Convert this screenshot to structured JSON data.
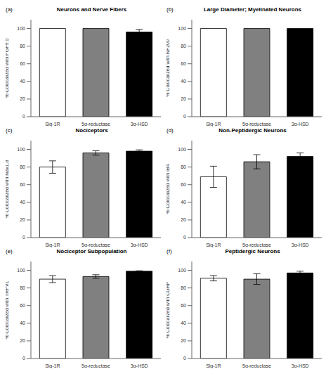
{
  "chart_data": [
    {
      "type": "bar",
      "title": "Neurons and Nerve Fibers",
      "annotations": [
        "(a)"
      ],
      "y_label": "% Colocalized with PGP9.5",
      "categories": [
        "Sig-1R",
        "5α-reductase",
        "3α-HSD"
      ],
      "values": [
        100,
        100,
        96
      ],
      "errors": [
        0,
        0,
        3
      ],
      "colors": [
        "white",
        "#808080",
        "black"
      ],
      "ylim": [
        0,
        110
      ],
      "yticks": [
        0,
        20,
        40,
        60,
        80,
        100
      ],
      "grid": false
    },
    {
      "type": "bar",
      "title": "Large Diameter; Myelinated Neurons",
      "annotations": [
        "(b)"
      ],
      "y_label": "% Colocalized with NF200",
      "categories": [
        "Sig-1R",
        "5α-reductase",
        "3α-HSD"
      ],
      "values": [
        100,
        100,
        100
      ],
      "errors": [
        0,
        0,
        0
      ],
      "colors": [
        "white",
        "#808080",
        "black"
      ],
      "ylim": [
        0,
        110
      ],
      "yticks": [
        0,
        20,
        40,
        60,
        80,
        100
      ],
      "grid": false
    },
    {
      "type": "bar",
      "title": "Nociceptors",
      "annotations": [
        "(c)"
      ],
      "y_label": "% Colocalized with Nav1.8",
      "categories": [
        "Sig-1R",
        "5α-reductase",
        "3α-HSD"
      ],
      "values": [
        80,
        96,
        98
      ],
      "errors": [
        7,
        2.5,
        1.5
      ],
      "colors": [
        "white",
        "#808080",
        "black"
      ],
      "ylim": [
        0,
        110
      ],
      "yticks": [
        0,
        20,
        40,
        60,
        80,
        100
      ],
      "grid": false
    },
    {
      "type": "bar",
      "title": "Non-Peptidergic Neurons",
      "annotations": [
        "(d)"
      ],
      "y_label": "% Colocalized with IB4",
      "categories": [
        "Sig-1R",
        "5α-reductase",
        "3α-HSD"
      ],
      "values": [
        69,
        86,
        92
      ],
      "errors": [
        12,
        8,
        4
      ],
      "colors": [
        "white",
        "#808080",
        "black"
      ],
      "ylim": [
        0,
        110
      ],
      "yticks": [
        0,
        20,
        40,
        60,
        80,
        100
      ],
      "grid": false
    },
    {
      "type": "bar",
      "title": "Nociceptor Subpopulation",
      "annotations": [
        "(e)"
      ],
      "y_label": "% Colocalized with TRPV1",
      "categories": [
        "Sig-1R",
        "5α-reductase",
        "3α-HSD"
      ],
      "values": [
        90,
        93,
        99
      ],
      "errors": [
        4,
        2,
        0.5
      ],
      "colors": [
        "white",
        "#808080",
        "black"
      ],
      "ylim": [
        0,
        110
      ],
      "yticks": [
        0,
        20,
        40,
        60,
        80,
        100
      ],
      "grid": false
    },
    {
      "type": "bar",
      "title": "Peptidergic Neurons",
      "annotations": [
        "(f)"
      ],
      "y_label": "% Colocalized with CGRP",
      "categories": [
        "Sig-1R",
        "5α-reductase",
        "3α-HSD"
      ],
      "values": [
        91,
        90,
        97
      ],
      "errors": [
        3,
        6,
        2
      ],
      "colors": [
        "white",
        "#808080",
        "black"
      ],
      "ylim": [
        0,
        110
      ],
      "yticks": [
        0,
        20,
        40,
        60,
        80,
        100
      ],
      "grid": false
    }
  ]
}
